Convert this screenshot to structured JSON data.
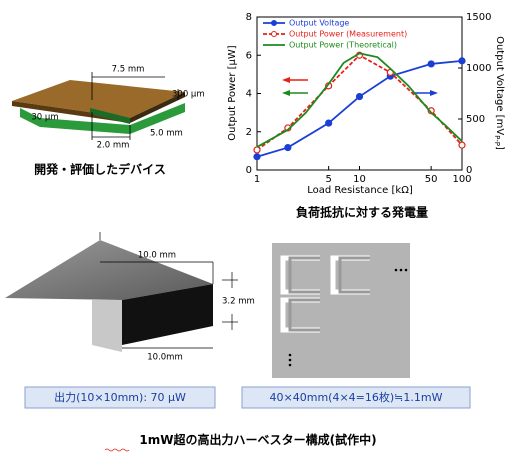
{
  "device": {
    "dim_length": "7.5 mm",
    "dim_thickness": "300 μm",
    "dim_gap": "30 μm",
    "dim_a": "2.0 mm",
    "dim_b": "5.0 mm",
    "caption": "開発・評価したデバイス"
  },
  "chart_data": {
    "type": "line",
    "xlabel": "Load Resistance [kΩ]",
    "ylabel": "Output Power [μW]",
    "y2label": {
      "text": "Output Voltage [mV",
      "sub": "P-P",
      "end": "]"
    },
    "caption": "負荷抵抗に対する発電量",
    "xscale": "log",
    "xlim": [
      1,
      100
    ],
    "xticks": [
      1,
      5,
      10,
      50,
      100
    ],
    "ylim": [
      0,
      8
    ],
    "yticks": [
      0,
      2,
      4,
      6,
      8
    ],
    "y2lim": [
      0,
      1500
    ],
    "y2ticks": [
      0,
      500,
      1000,
      1500
    ],
    "legend": "upper left",
    "series": [
      {
        "name": "Output Voltage",
        "color": "#1a3fd6",
        "axis": "y2",
        "marker": "circle",
        "dash": false,
        "x": [
          1,
          2,
          5,
          10,
          20,
          50,
          100
        ],
        "values": [
          130,
          220,
          460,
          720,
          920,
          1040,
          1070
        ]
      },
      {
        "name": "Output Power (Measurement)",
        "color": "#e8201a",
        "marker": "open-circle",
        "dash": true,
        "x": [
          1,
          2,
          5,
          10,
          20,
          50,
          100
        ],
        "values": [
          1.05,
          2.2,
          4.4,
          6.0,
          5.1,
          3.1,
          1.3
        ]
      },
      {
        "name": "Output Power (Theoretical)",
        "color": "#1e8a1e",
        "marker": "none",
        "dash": false,
        "x": [
          1,
          2,
          3,
          5,
          7,
          10,
          15,
          20,
          30,
          50,
          70,
          100
        ],
        "values": [
          1.2,
          2.1,
          3.0,
          4.5,
          5.6,
          6.1,
          5.9,
          5.3,
          4.4,
          3.0,
          2.3,
          1.5
        ]
      }
    ]
  },
  "prototype": {
    "dim_top": "10.0 mm",
    "dim_height": "3.2 mm",
    "dim_front": "10.0mm",
    "single_output": "出力(10×10mm): 70 μW",
    "array_output": "40×40mm(4×4=16枚)≒1.1mW"
  },
  "caption": {
    "highlight": "1mW",
    "rest": "超の高出力ハーベスター構成(試作中)"
  }
}
